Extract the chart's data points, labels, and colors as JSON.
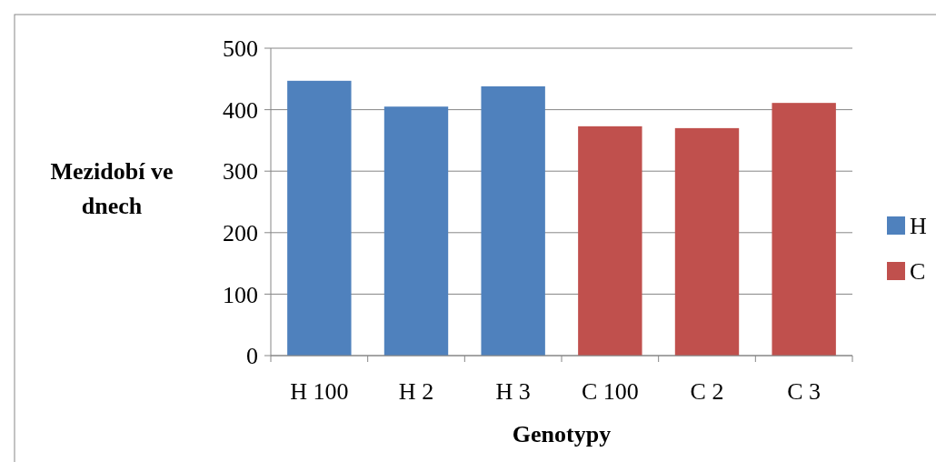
{
  "chart_data": {
    "type": "bar",
    "xlabel": "Genotypy",
    "ylabel": "Mezidobí ve dnech",
    "categories": [
      "H 100",
      "H 2",
      "H 3",
      "C 100",
      "C 2",
      "C 3"
    ],
    "series": [
      {
        "name": "H",
        "color": "#4f81bd",
        "values": [
          447,
          405,
          438,
          null,
          null,
          null
        ]
      },
      {
        "name": "C",
        "color": "#c0504d",
        "values": [
          null,
          null,
          null,
          373,
          370,
          411
        ]
      }
    ],
    "stacked": true,
    "ylim": [
      0,
      500
    ],
    "yticks": [
      0,
      100,
      200,
      300,
      400,
      500
    ],
    "grid": "y",
    "legend": "right"
  }
}
